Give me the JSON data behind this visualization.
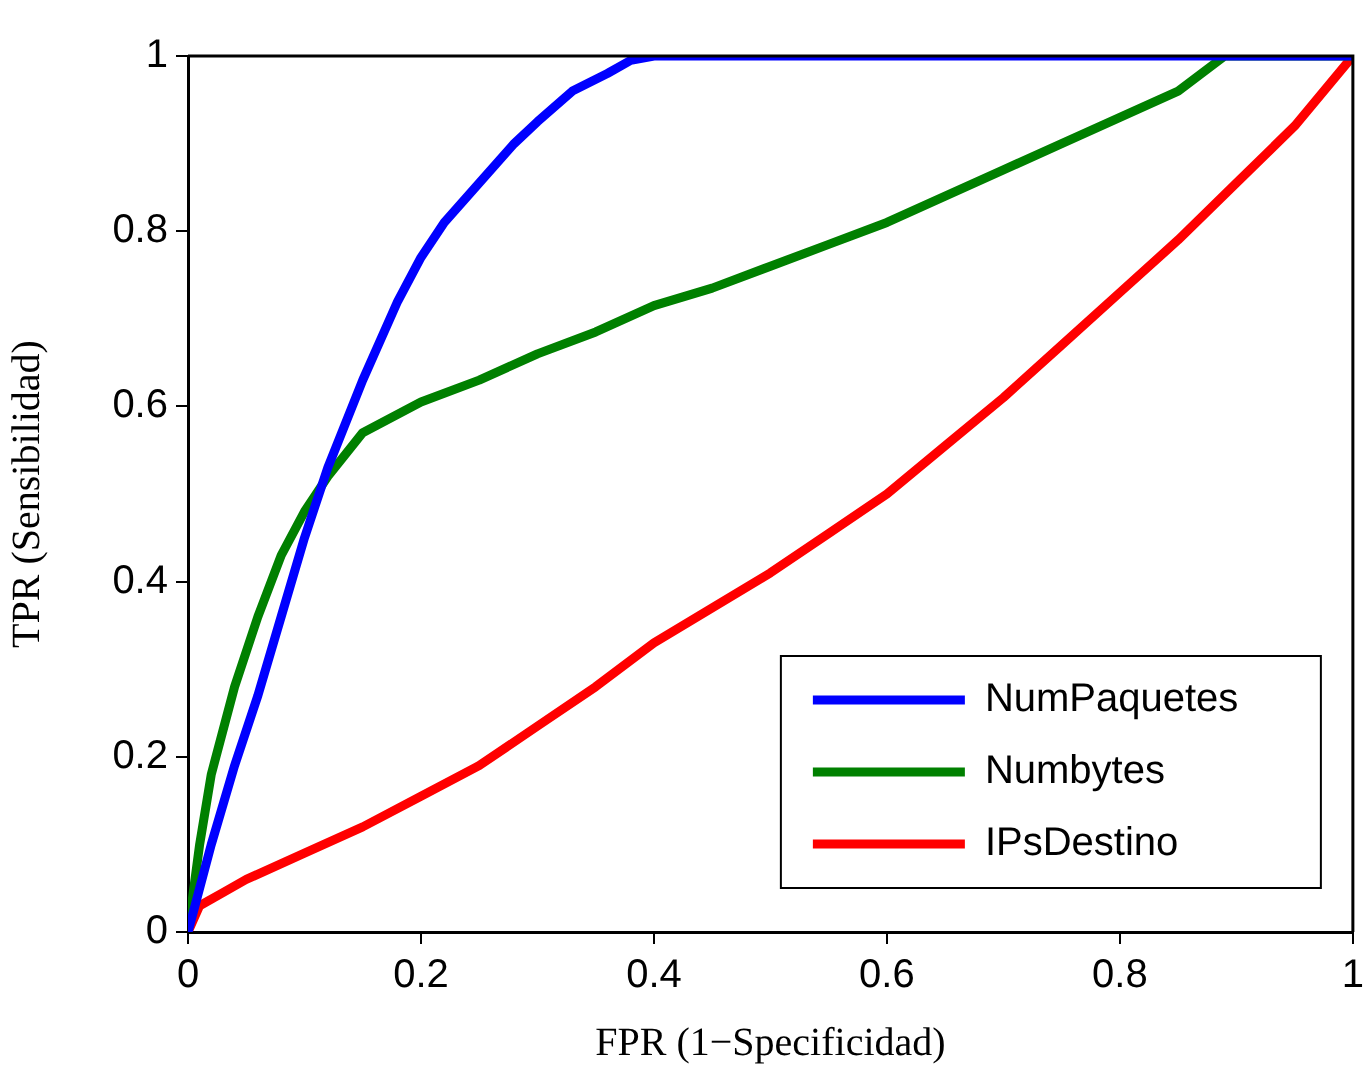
{
  "chart_data": {
    "type": "line",
    "xlabel": "FPR (1−Specificidad)",
    "ylabel": "TPR (Sensibilidad)",
    "xlim": [
      0,
      1
    ],
    "ylim": [
      0,
      1
    ],
    "xticks": [
      0,
      0.2,
      0.4,
      0.6,
      0.8,
      1
    ],
    "yticks": [
      0,
      0.2,
      0.4,
      0.6,
      0.8,
      1
    ],
    "grid": false,
    "legend": "bottom right",
    "marker": "none",
    "line_style": "solid",
    "series": [
      {
        "name": "NumPaquetes",
        "color": "#0000ff",
        "x": [
          0,
          0.02,
          0.04,
          0.06,
          0.08,
          0.1,
          0.12,
          0.15,
          0.18,
          0.2,
          0.22,
          0.25,
          0.28,
          0.3,
          0.33,
          0.36,
          0.38,
          0.4,
          1
        ],
        "values": [
          0,
          0.1,
          0.19,
          0.27,
          0.36,
          0.45,
          0.53,
          0.63,
          0.72,
          0.77,
          0.81,
          0.855,
          0.9,
          0.925,
          0.96,
          0.98,
          0.995,
          1,
          1
        ]
      },
      {
        "name": "Numbytes",
        "color": "#008000",
        "x": [
          0,
          0.01,
          0.02,
          0.04,
          0.06,
          0.08,
          0.1,
          0.12,
          0.15,
          0.2,
          0.25,
          0.3,
          0.35,
          0.4,
          0.45,
          0.5,
          0.55,
          0.6,
          0.65,
          0.7,
          0.75,
          0.8,
          0.85,
          0.89,
          1
        ],
        "values": [
          0,
          0.1,
          0.18,
          0.28,
          0.36,
          0.43,
          0.48,
          0.52,
          0.57,
          0.605,
          0.63,
          0.66,
          0.685,
          0.715,
          0.735,
          0.76,
          0.785,
          0.81,
          0.84,
          0.87,
          0.9,
          0.93,
          0.96,
          1,
          1
        ]
      },
      {
        "name": "IPsDestino",
        "color": "#ff0000",
        "x": [
          0,
          0.01,
          0.03,
          0.05,
          0.1,
          0.15,
          0.2,
          0.25,
          0.3,
          0.35,
          0.4,
          0.45,
          0.5,
          0.55,
          0.6,
          0.65,
          0.7,
          0.75,
          0.8,
          0.85,
          0.9,
          0.95,
          1
        ],
        "values": [
          0,
          0.03,
          0.045,
          0.06,
          0.09,
          0.12,
          0.155,
          0.19,
          0.235,
          0.28,
          0.33,
          0.37,
          0.41,
          0.455,
          0.5,
          0.555,
          0.61,
          0.67,
          0.73,
          0.79,
          0.855,
          0.92,
          1
        ]
      }
    ]
  }
}
